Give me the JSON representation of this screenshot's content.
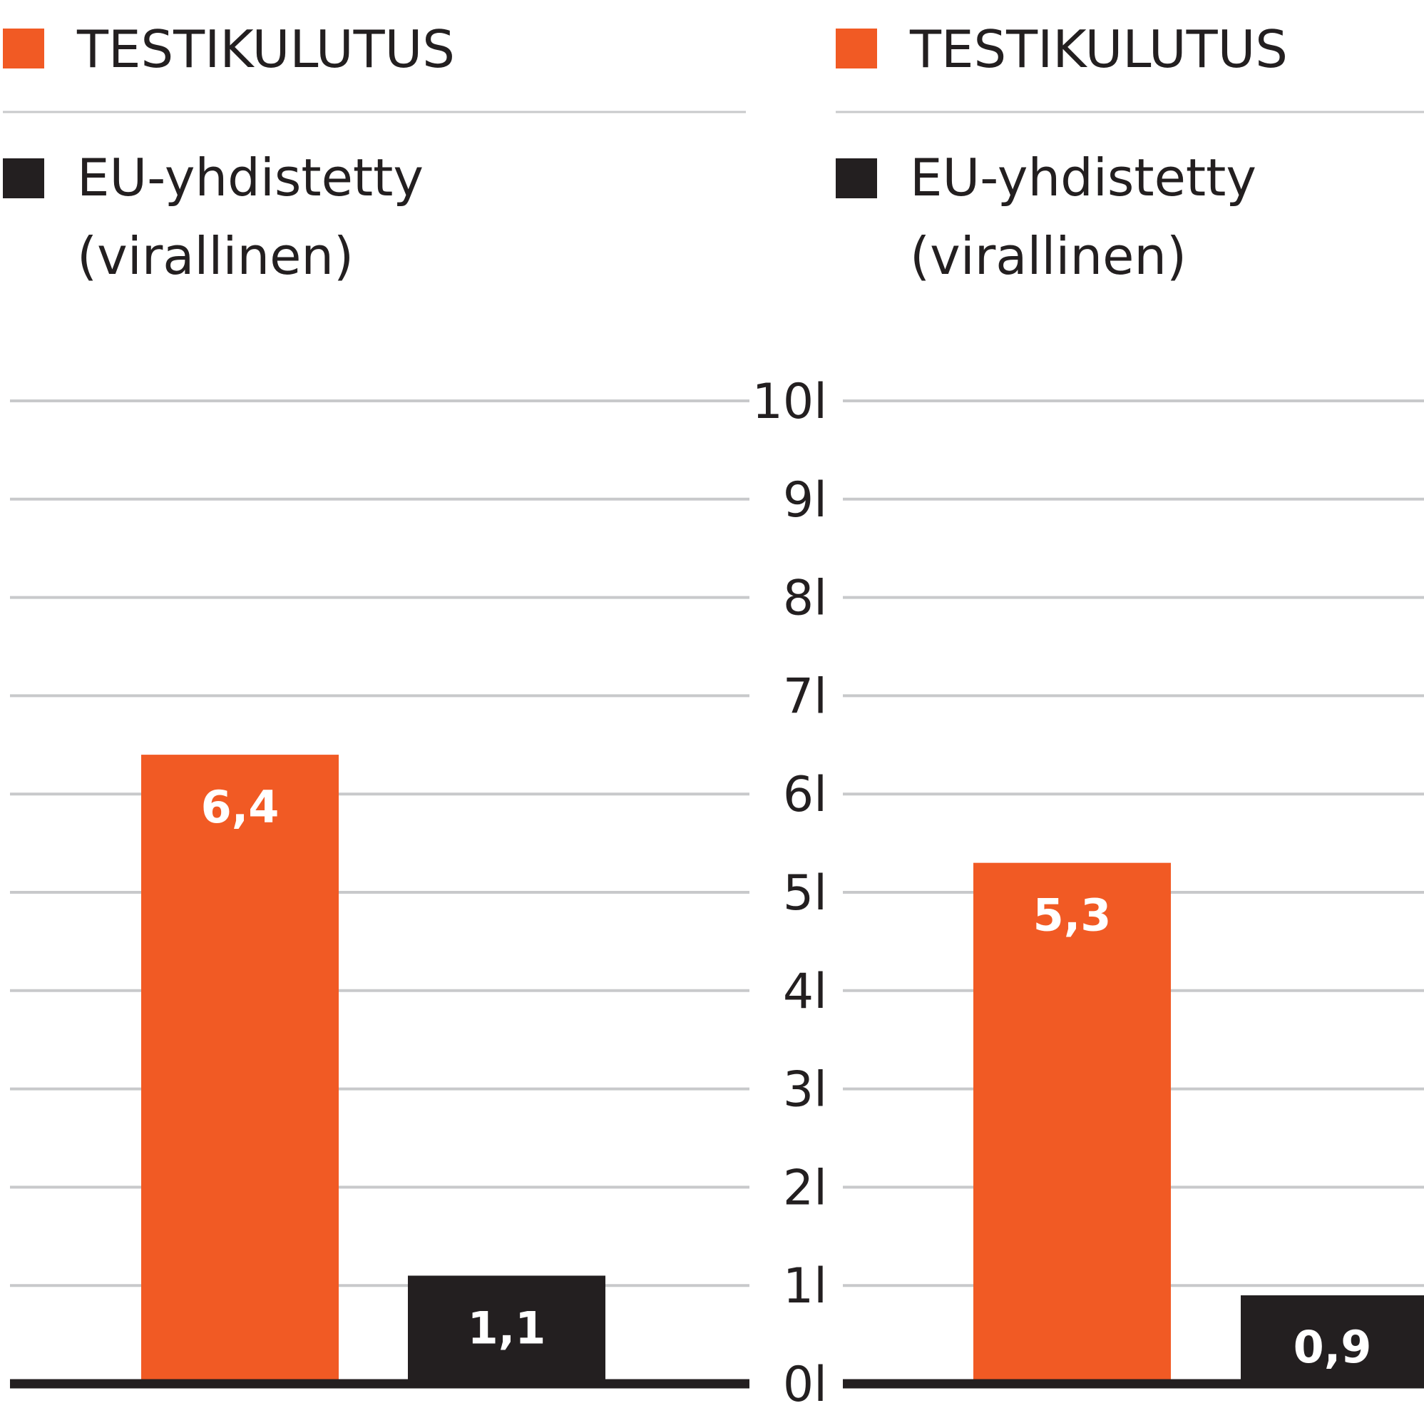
{
  "colors": {
    "test": "#f15a24",
    "official": "#231f20",
    "grid": "#c8c9cb",
    "baseline": "#231f20"
  },
  "panels": [
    {
      "legend": {
        "test_label": "TESTIKULUTUS",
        "official_label_line1": "EU-yhdistetty",
        "official_label_line2": "(virallinen)"
      }
    },
    {
      "legend": {
        "test_label": "TESTIKULUTUS",
        "official_label_line1": "EU-yhdistetty",
        "official_label_line2": "(virallinen)"
      }
    }
  ],
  "chart_data": [
    {
      "type": "bar",
      "categories": [
        "TESTIKULUTUS",
        "EU-yhdistetty (virallinen)"
      ],
      "values": [
        6.4,
        1.1
      ],
      "value_labels": [
        "6,4",
        "1,1"
      ],
      "ylim": [
        0,
        10
      ],
      "grid": true
    },
    {
      "type": "bar",
      "categories": [
        "TESTIKULUTUS",
        "EU-yhdistetty (virallinen)"
      ],
      "values": [
        5.3,
        0.9
      ],
      "value_labels": [
        "5,3",
        "0,9"
      ],
      "ylim": [
        0,
        10
      ],
      "grid": true
    }
  ],
  "y_axis": {
    "ticks": [
      0,
      1,
      2,
      3,
      4,
      5,
      6,
      7,
      8,
      9,
      10
    ],
    "tick_labels": [
      "0l",
      "1l",
      "2l",
      "3l",
      "4l",
      "5l",
      "6l",
      "7l",
      "8l",
      "9l",
      "10l"
    ]
  }
}
